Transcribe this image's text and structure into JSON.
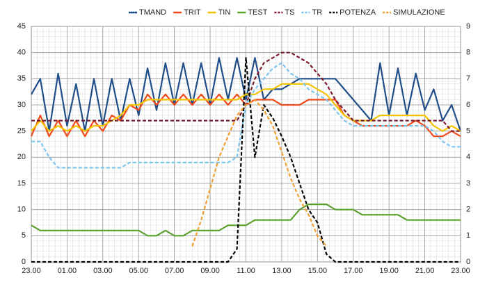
{
  "chart_data": {
    "type": "line",
    "x": [
      0,
      0.5,
      1,
      1.5,
      2,
      2.5,
      3,
      3.5,
      4,
      4.5,
      5,
      5.5,
      6,
      6.5,
      7,
      7.5,
      8,
      8.5,
      9,
      9.5,
      10,
      10.5,
      11,
      11.5,
      12,
      12.5,
      13,
      13.5,
      14,
      14.5,
      15,
      15.5,
      16,
      16.5,
      17,
      17.5,
      18,
      18.5,
      19,
      19.5,
      20,
      20.5,
      21,
      21.5,
      22,
      22.5,
      23,
      23.5,
      24
    ],
    "xlim": [
      0,
      24
    ],
    "xticks": [
      {
        "value": 0,
        "label": "23.00"
      },
      {
        "value": 2,
        "label": "01.00"
      },
      {
        "value": 4,
        "label": "03.00"
      },
      {
        "value": 6,
        "label": "05.00"
      },
      {
        "value": 8,
        "label": "07.00"
      },
      {
        "value": 10,
        "label": "09.00"
      },
      {
        "value": 12,
        "label": "11.00"
      },
      {
        "value": 14,
        "label": "13.00"
      },
      {
        "value": 16,
        "label": "15.00"
      },
      {
        "value": 18,
        "label": "17.00"
      },
      {
        "value": 20,
        "label": "19.00"
      },
      {
        "value": 22,
        "label": "21.00"
      },
      {
        "value": 24,
        "label": "23.00"
      }
    ],
    "ylim": [
      0,
      45
    ],
    "yticks": [
      0,
      5,
      10,
      15,
      20,
      25,
      30,
      35,
      40,
      45
    ],
    "y2lim": [
      0,
      9
    ],
    "y2ticks": [
      0,
      1,
      2,
      3,
      4,
      5,
      6,
      7,
      8,
      9
    ],
    "grid": true,
    "series": [
      {
        "name": "TMAND",
        "color": "#1f4e89",
        "dashed": false,
        "values": [
          32,
          35,
          25,
          36,
          26,
          34,
          25,
          35,
          26,
          35,
          27,
          35,
          28,
          37,
          29,
          38,
          30,
          38,
          30,
          38,
          30,
          39,
          31,
          39,
          31,
          39,
          31,
          33,
          33,
          34,
          35,
          35,
          35,
          35,
          35,
          33,
          31,
          29,
          27,
          38,
          28,
          37,
          28,
          36,
          29,
          33,
          27,
          30,
          25
        ]
      },
      {
        "name": "TRIT",
        "color": "#f04a1a",
        "dashed": false,
        "values": [
          24,
          28,
          24,
          27,
          24,
          27,
          24,
          27,
          25,
          28,
          27,
          30,
          29,
          32,
          30,
          32,
          30,
          32,
          30,
          32,
          30,
          32,
          30,
          32,
          30,
          31,
          31,
          31,
          30,
          30,
          30,
          31,
          31,
          31,
          31,
          28,
          27,
          26,
          26,
          26,
          26,
          26,
          26,
          27,
          26,
          24,
          24,
          25,
          24
        ]
      },
      {
        "name": "TIN",
        "color": "#f5c400",
        "dashed": false,
        "values": [
          25,
          27,
          25,
          26,
          25,
          26,
          25,
          26,
          26,
          27,
          28,
          30,
          30,
          31,
          31,
          31,
          31,
          31,
          31,
          31,
          31,
          31,
          31,
          31,
          32,
          32,
          33,
          33,
          34,
          34,
          34,
          34,
          33,
          32,
          30,
          28,
          27,
          27,
          27,
          28,
          28,
          28,
          28,
          28,
          28,
          26,
          25,
          26,
          25
        ]
      },
      {
        "name": "TEST",
        "color": "#5aa02c",
        "dashed": false,
        "values": [
          7,
          6,
          6,
          6,
          6,
          6,
          6,
          6,
          6,
          6,
          6,
          6,
          6,
          5,
          5,
          6,
          5,
          5,
          6,
          6,
          6,
          6,
          7,
          7,
          7,
          8,
          8,
          8,
          8,
          8,
          10,
          11,
          11,
          11,
          10,
          10,
          10,
          9,
          9,
          9,
          9,
          9,
          8,
          8,
          8,
          8,
          8,
          8,
          8
        ]
      },
      {
        "name": "TS",
        "color": "#7b1a2c",
        "dashed": true,
        "values": [
          27,
          27,
          27,
          27,
          27,
          27,
          27,
          27,
          27,
          27,
          27,
          27,
          27,
          27,
          27,
          27,
          27,
          27,
          27,
          27,
          27,
          27,
          27,
          27,
          30,
          35,
          38,
          39,
          40,
          40,
          39,
          38,
          36,
          34,
          31,
          29,
          27,
          27,
          27,
          27,
          27,
          27,
          27,
          27,
          27,
          27,
          27,
          25,
          25
        ]
      },
      {
        "name": "TR",
        "color": "#7cc4f0",
        "dashed": true,
        "values": [
          23,
          23,
          20,
          18,
          18,
          18,
          18,
          18,
          18,
          18,
          18,
          19,
          19,
          19,
          19,
          19,
          19,
          19,
          19,
          19,
          19,
          19,
          19,
          20,
          30,
          33,
          35,
          37,
          38,
          36,
          35,
          33,
          32,
          31,
          29,
          27,
          26,
          26,
          26,
          26,
          26,
          26,
          26,
          26,
          26,
          25,
          23,
          22,
          22
        ]
      },
      {
        "name": "POTENZA",
        "color": "#000000",
        "dashed": true,
        "axis": "y2",
        "values": [
          0,
          0,
          0,
          0,
          0,
          0,
          0,
          0,
          0,
          0,
          0,
          0,
          0,
          0,
          0,
          0,
          0,
          0,
          0,
          0,
          0,
          0,
          0,
          0.5,
          7.8,
          4,
          6,
          5.5,
          4.8,
          4,
          3,
          2,
          1.5,
          0.3,
          0,
          0,
          0,
          0,
          0,
          0,
          0,
          0,
          0,
          0,
          0,
          0,
          0,
          0,
          0
        ]
      },
      {
        "name": "SIMULAZIONE",
        "color": "#f0a030",
        "dashed": true,
        "values": [
          null,
          null,
          null,
          null,
          null,
          null,
          null,
          null,
          null,
          null,
          null,
          null,
          null,
          null,
          null,
          null,
          null,
          null,
          3,
          8,
          14,
          20,
          24,
          28,
          30,
          31,
          29,
          26,
          21,
          16,
          12,
          9,
          5,
          3,
          null,
          null,
          null,
          null,
          null,
          null,
          null,
          null,
          null,
          null,
          null,
          null,
          null,
          null,
          null
        ]
      }
    ]
  }
}
